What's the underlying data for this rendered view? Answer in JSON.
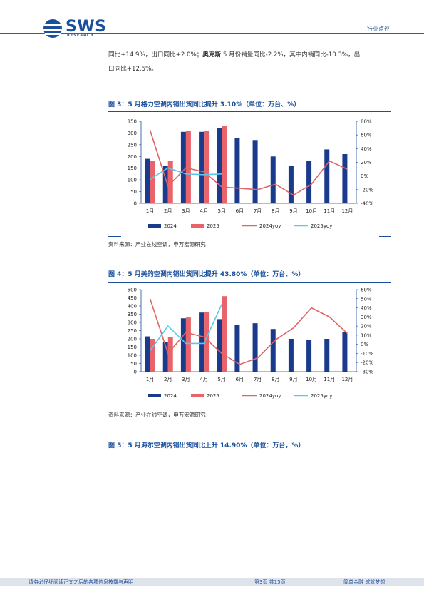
{
  "header": {
    "brand": "SWS",
    "brand_sub": "RESEARCH",
    "section": "行业点评"
  },
  "body": {
    "line1_a": "同比+14.9%，出口同比+2.0%；",
    "line1_b": "奥克斯",
    "line1_c": " 5 月份销量同比-2.2%，其中内销同比-10.3%，出",
    "line2": "口同比+12.5%。"
  },
  "fig3": {
    "title": "图 3：5 月格力空调内销出货同比提升 3.10%（单位：万台、%）",
    "source": "资料来源：产业在线空调，申万宏源研究"
  },
  "fig4": {
    "title": "图 4：5 月美的空调内销出货同比提升 43.80%（单位：万台、%）",
    "source": "资料来源：产业在线空调，申万宏源研究"
  },
  "fig5": {
    "title": "图 5：5 月海尔空调内销出货同比上升 14.90%（单位：万台，%）"
  },
  "footer": {
    "left": "请务必仔细阅读正文之后的各项信息披露与声明",
    "center": "第3页 共15页",
    "right": "简单金融 成就梦想"
  },
  "colors": {
    "navy": "#1a3a8c",
    "salmon": "#e8636a",
    "red_line": "#e06565",
    "cyan_line": "#5bc8ea",
    "brand_blue": "#1a4f9c",
    "brand_red": "#c8252c"
  },
  "chart_data": [
    {
      "type": "bar",
      "categories": [
        "1月",
        "2月",
        "3月",
        "4月",
        "5月",
        "6月",
        "7月",
        "8月",
        "9月",
        "10月",
        "11月",
        "12月"
      ],
      "series": [
        {
          "name": "2024",
          "kind": "bar",
          "axis": "left",
          "values": [
            190,
            160,
            305,
            305,
            320,
            280,
            270,
            200,
            160,
            180,
            230,
            210
          ]
        },
        {
          "name": "2025",
          "kind": "bar",
          "axis": "left",
          "values": [
            180,
            180,
            310,
            310,
            330,
            null,
            null,
            null,
            null,
            null,
            null,
            null
          ]
        },
        {
          "name": "2024yoy",
          "kind": "line",
          "axis": "right",
          "values": [
            67,
            -15,
            12,
            6,
            -16,
            -18,
            -20,
            -12,
            -28,
            -12,
            22,
            10
          ]
        },
        {
          "name": "2025yoy",
          "kind": "line",
          "axis": "right",
          "values": [
            -5,
            12,
            3,
            2,
            3,
            null,
            null,
            null,
            null,
            null,
            null,
            null
          ]
        }
      ],
      "y_left": {
        "min": 0,
        "max": 350,
        "ticks": [
          "0",
          "50",
          "100",
          "150",
          "200",
          "250",
          "300",
          "350"
        ]
      },
      "y_right": {
        "min": -40,
        "max": 80,
        "ticks": [
          "-40%",
          "-20%",
          "0%",
          "20%",
          "40%",
          "60%",
          "80%"
        ]
      }
    },
    {
      "type": "bar",
      "categories": [
        "1月",
        "2月",
        "3月",
        "4月",
        "5月",
        "6月",
        "7月",
        "8月",
        "9月",
        "10月",
        "11月",
        "12月"
      ],
      "series": [
        {
          "name": "2024",
          "kind": "bar",
          "axis": "left",
          "values": [
            215,
            180,
            325,
            360,
            320,
            285,
            295,
            260,
            200,
            195,
            200,
            240
          ]
        },
        {
          "name": "2025",
          "kind": "bar",
          "axis": "left",
          "values": [
            200,
            210,
            330,
            365,
            460,
            null,
            null,
            null,
            null,
            null,
            null,
            null
          ]
        },
        {
          "name": "2024yoy",
          "kind": "line",
          "axis": "right",
          "values": [
            50,
            -10,
            13,
            8,
            -10,
            -22,
            -15,
            5,
            18,
            40,
            30,
            12
          ]
        },
        {
          "name": "2025yoy",
          "kind": "line",
          "axis": "right",
          "values": [
            -7,
            20,
            1,
            1,
            44,
            null,
            null,
            null,
            null,
            null,
            null,
            null
          ]
        }
      ],
      "y_left": {
        "min": 0,
        "max": 500,
        "ticks": [
          "0",
          "50",
          "100",
          "150",
          "200",
          "250",
          "300",
          "350",
          "400",
          "450",
          "500"
        ]
      },
      "y_right": {
        "min": -30,
        "max": 60,
        "ticks": [
          "-30%",
          "-20%",
          "-10%",
          "0%",
          "10%",
          "20%",
          "30%",
          "40%",
          "50%",
          "60%"
        ]
      }
    }
  ]
}
